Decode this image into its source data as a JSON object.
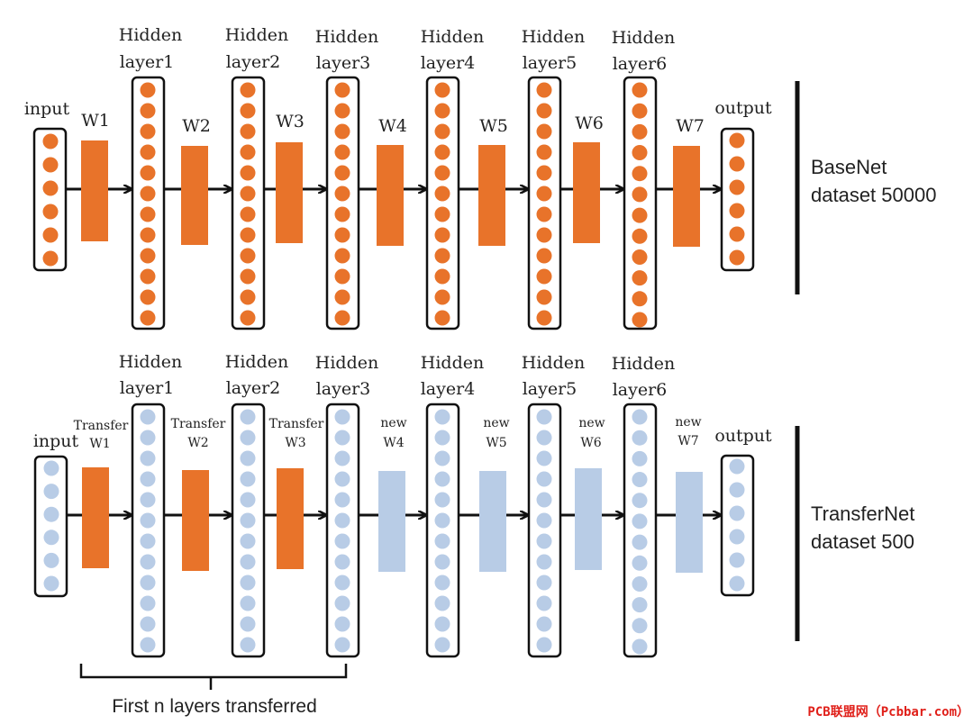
{
  "colors": {
    "base_fill": "#E8732A",
    "transfer_neuron": "#B8CCE6",
    "new_weight": "#B8CCE6",
    "outline": "#111111",
    "watermark": "#E0201A"
  },
  "basenet": {
    "input_label": "input",
    "output_label": "output",
    "hidden_layers": [
      {
        "line1": "Hidden",
        "line2": "layer1"
      },
      {
        "line1": "Hidden",
        "line2": "layer2"
      },
      {
        "line1": "Hidden",
        "line2": "layer3"
      },
      {
        "line1": "Hidden",
        "line2": "layer4"
      },
      {
        "line1": "Hidden",
        "line2": "layer5"
      },
      {
        "line1": "Hidden",
        "line2": "layer6"
      }
    ],
    "weights": [
      "W1",
      "W2",
      "W3",
      "W4",
      "W5",
      "W6",
      "W7"
    ],
    "side_label_1": "BaseNet",
    "side_label_2": "dataset 50000"
  },
  "transfernet": {
    "input_label": "input",
    "output_label": "output",
    "hidden_layers": [
      {
        "line1": "Hidden",
        "line2": "layer1"
      },
      {
        "line1": "Hidden",
        "line2": "layer2"
      },
      {
        "line1": "Hidden",
        "line2": "layer3"
      },
      {
        "line1": "Hidden",
        "line2": "layer4"
      },
      {
        "line1": "Hidden",
        "line2": "layer5"
      },
      {
        "line1": "Hidden",
        "line2": "layer6"
      }
    ],
    "weights": [
      {
        "line1": "Transfer",
        "line2": "W1",
        "kind": "transfer"
      },
      {
        "line1": "Transfer",
        "line2": "W2",
        "kind": "transfer"
      },
      {
        "line1": "Transfer",
        "line2": "W3",
        "kind": "transfer"
      },
      {
        "line1": "new",
        "line2": "W4",
        "kind": "new"
      },
      {
        "line1": "new",
        "line2": "W5",
        "kind": "new"
      },
      {
        "line1": "new",
        "line2": "W6",
        "kind": "new"
      },
      {
        "line1": "new",
        "line2": "W7",
        "kind": "new"
      }
    ],
    "side_label_1": "TransferNet",
    "side_label_2": "dataset 500"
  },
  "bracket_label": "First n layers transferred",
  "watermark": "PCB联盟网（Pcbbar.com）"
}
